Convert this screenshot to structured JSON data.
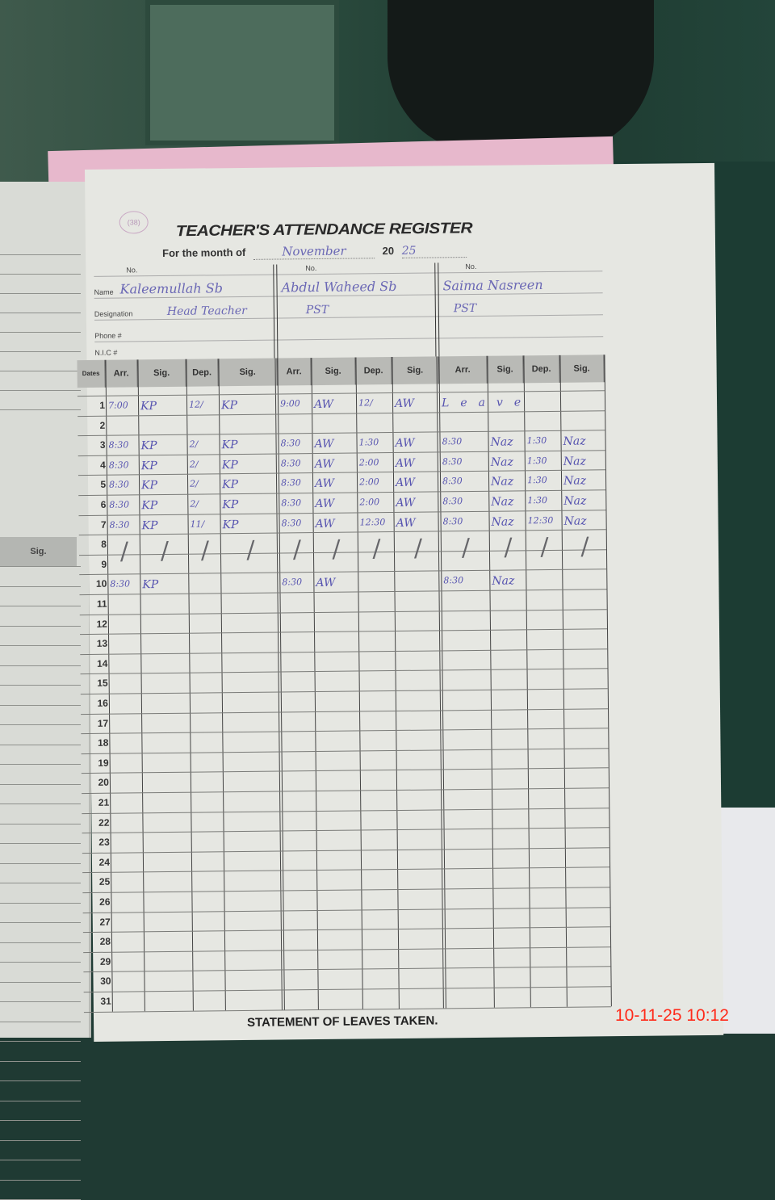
{
  "register": {
    "stamp": "(38)",
    "title": "TEACHER'S ATTENDANCE REGISTER",
    "month_label": "For the month of",
    "month_value": "November",
    "year_prefix": "20",
    "year_value": "25",
    "labels": {
      "no": "No.",
      "name": "Name",
      "designation": "Designation",
      "phone": "Phone #",
      "nic": "N.I.C #",
      "dates": "Dates",
      "left_sig": "Sig."
    },
    "teachers": [
      {
        "name": "Kaleemullah Sb",
        "designation": "Head Teacher"
      },
      {
        "name": "Abdul Waheed Sb",
        "designation": "PST"
      },
      {
        "name": "Saima Nasreen",
        "designation": "PST"
      }
    ],
    "column_headers": [
      "Arr.",
      "Sig.",
      "Dep.",
      "Sig."
    ],
    "dates": [
      "1",
      "2",
      "3",
      "4",
      "5",
      "6",
      "7",
      "8",
      "9",
      "10",
      "11",
      "12",
      "13",
      "14",
      "15",
      "16",
      "17",
      "18",
      "19",
      "20",
      "21",
      "22",
      "23",
      "24",
      "25",
      "26",
      "27",
      "28",
      "29",
      "30",
      "31"
    ],
    "entries": [
      {
        "date": "1",
        "cells": [
          "7:00",
          "KP",
          "12/",
          "KP",
          "9:00",
          "AW",
          "12/",
          "AW",
          "Leave",
          "",
          "",
          ""
        ]
      },
      {
        "date": "3",
        "cells": [
          "8:30",
          "KP",
          "2/",
          "KP",
          "8:30",
          "AW",
          "1:30",
          "AW",
          "8:30",
          "Naz",
          "1:30",
          "Naz"
        ]
      },
      {
        "date": "4",
        "cells": [
          "8:30",
          "KP",
          "2/",
          "KP",
          "8:30",
          "AW",
          "2:00",
          "AW",
          "8:30",
          "Naz",
          "1:30",
          "Naz"
        ]
      },
      {
        "date": "5",
        "cells": [
          "8:30",
          "KP",
          "2/",
          "KP",
          "8:30",
          "AW",
          "2:00",
          "AW",
          "8:30",
          "Naz",
          "1:30",
          "Naz"
        ]
      },
      {
        "date": "6",
        "cells": [
          "8:30",
          "KP",
          "2/",
          "KP",
          "8:30",
          "AW",
          "2:00",
          "AW",
          "8:30",
          "Naz",
          "1:30",
          "Naz"
        ]
      },
      {
        "date": "7",
        "cells": [
          "8:30",
          "KP",
          "11/",
          "KP",
          "8:30",
          "AW",
          "12:30",
          "AW",
          "8:30",
          "Naz",
          "12:30",
          "Naz"
        ]
      },
      {
        "date": "10",
        "cells": [
          "8:30",
          "KP",
          "",
          "",
          "8:30",
          "AW",
          "",
          "",
          "8:30",
          "Naz",
          "",
          ""
        ]
      }
    ],
    "footer": "STATEMENT OF LEAVES TAKEN."
  },
  "camera_timestamp": "10-11-25  10:12",
  "colors": {
    "ink": "#5754b0",
    "header_fill": "#b9bab6",
    "timestamp": "#ff2a1a",
    "folder": "#e7b8cc"
  }
}
